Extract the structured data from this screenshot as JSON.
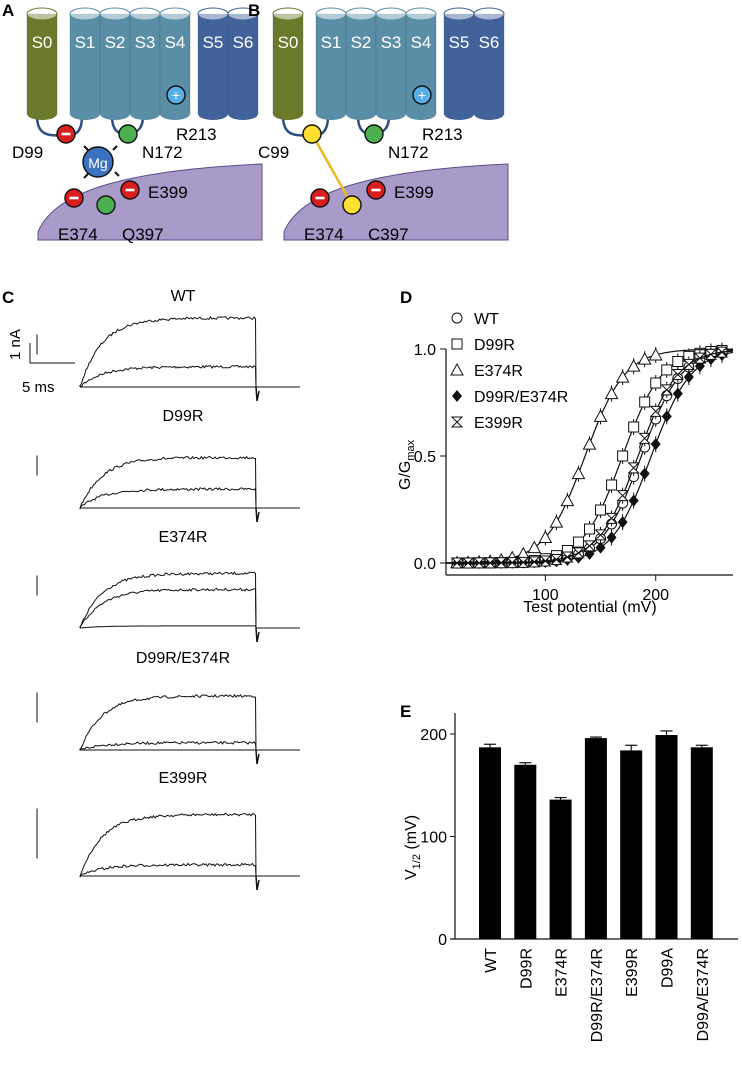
{
  "panels": {
    "A": {
      "letter": "A",
      "segments": [
        "S0",
        "S1",
        "S2",
        "S3",
        "S4",
        "S5",
        "S6"
      ],
      "residues": {
        "r213": "R213",
        "d99": "D99",
        "n172": "N172",
        "mg": "Mg",
        "e374": "E374",
        "q397": "Q397",
        "e399": "E399"
      },
      "charge_neg": "−",
      "charge_pos": "+"
    },
    "B": {
      "letter": "B",
      "segments": [
        "S0",
        "S1",
        "S2",
        "S3",
        "S4",
        "S5",
        "S6"
      ],
      "residues": {
        "r213": "R213",
        "c99": "C99",
        "n172": "N172",
        "e374": "E374",
        "c397": "C397",
        "e399": "E399"
      },
      "charge_neg": "−",
      "charge_pos": "+"
    },
    "C": {
      "letter": "C",
      "scale_current": "1 nA",
      "scale_time": "5 ms",
      "recordings": [
        {
          "label": "WT",
          "levels": [
            0.0,
            0.27,
            0.92
          ]
        },
        {
          "label": "D99R",
          "levels": [
            0.0,
            0.27,
            0.72
          ]
        },
        {
          "label": "E374R",
          "levels": [
            0.03,
            0.55,
            0.78
          ]
        },
        {
          "label": "D99R/E374R",
          "levels": [
            0.0,
            0.1,
            0.75
          ]
        },
        {
          "label": "E399R",
          "levels": [
            0.0,
            0.15,
            0.82
          ]
        }
      ]
    },
    "D": {
      "letter": "D"
    },
    "E": {
      "letter": "E"
    }
  },
  "colors": {
    "s0": "#6b7a2a",
    "s1_4": "#5a8ea6",
    "s5_6": "#41629a",
    "membrane": "#a99bc9",
    "negative": "#d81e1e",
    "neutral": "#4caf50",
    "positive": "#5aaee8",
    "mg": "#3a72c0",
    "cys": "#ffe030",
    "bond": "#e8b820"
  },
  "chart_data": [
    {
      "type": "scatter",
      "title": "",
      "xlabel": "Test potential (mV)",
      "ylabel": "G/G",
      "ylabel_sub": "max",
      "xlim": [
        10,
        270
      ],
      "ylim": [
        0,
        1.0
      ],
      "xticks": [
        "100",
        "200"
      ],
      "yticks": [
        "0.0",
        "0.5",
        "1.0"
      ],
      "legend_position": "top-left",
      "x": [
        20,
        30,
        40,
        50,
        60,
        70,
        80,
        90,
        100,
        110,
        120,
        130,
        140,
        150,
        160,
        170,
        180,
        190,
        200,
        210,
        220,
        230,
        240,
        250,
        260
      ],
      "series": [
        {
          "name": "WT",
          "marker": "open-circle",
          "v_half": 187,
          "slope": 18
        },
        {
          "name": "D99R",
          "marker": "open-square",
          "v_half": 170,
          "slope": 18
        },
        {
          "name": "E374R",
          "marker": "open-triangle",
          "v_half": 136,
          "slope": 18
        },
        {
          "name": "D99R/E374R",
          "marker": "filled-diamond",
          "v_half": 196,
          "slope": 18
        },
        {
          "name": "E399R",
          "marker": "hourglass",
          "v_half": 184,
          "slope": 18
        }
      ]
    },
    {
      "type": "bar",
      "title": "",
      "xlabel": "",
      "ylabel": "V",
      "ylabel_sub": "1/2",
      "ylabel_unit": " (mV)",
      "ylim": [
        0,
        220
      ],
      "yticks": [
        "0",
        "100",
        "200"
      ],
      "categories": [
        "WT",
        "D99R",
        "E374R",
        "D99R/E374R",
        "E399R",
        "D99A",
        "D99A/E374R"
      ],
      "values": [
        187,
        170,
        136,
        196,
        184,
        199,
        187
      ],
      "errors": [
        3,
        2,
        2,
        1,
        5,
        4,
        2
      ]
    }
  ]
}
